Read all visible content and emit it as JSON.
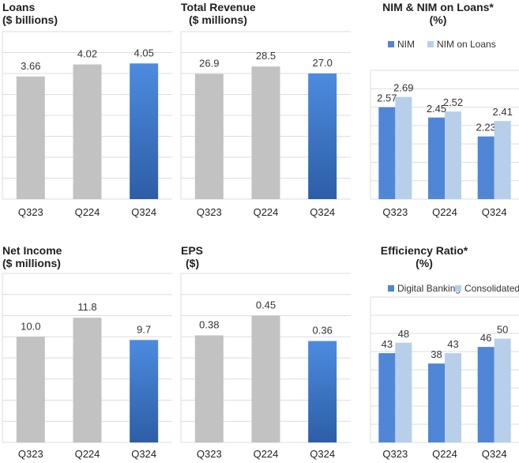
{
  "colors": {
    "gray": "#c2c2c2",
    "blue_top": "#4d8be0",
    "blue_bottom": "#2c5ea6",
    "series_primary": "#4f86d6",
    "series_secondary": "#b8cfea",
    "grid": "#d9dde4"
  },
  "chart_data": [
    {
      "id": "loans",
      "type": "bar",
      "title_line1": "Loans",
      "title_line2": "($ billions)",
      "categories": [
        "Q323",
        "Q224",
        "Q324"
      ],
      "values": [
        3.66,
        4.02,
        4.05
      ],
      "value_labels": [
        "3.66",
        "4.02",
        "4.05"
      ],
      "highlight": [
        false,
        false,
        true
      ],
      "ylim": [
        0,
        5
      ]
    },
    {
      "id": "revenue",
      "type": "bar",
      "title_line1": "Total Revenue",
      "title_line2": "($ millions)",
      "categories": [
        "Q323",
        "Q224",
        "Q324"
      ],
      "values": [
        26.9,
        28.5,
        27.0
      ],
      "value_labels": [
        "26.9",
        "28.5",
        "27.0"
      ],
      "highlight": [
        false,
        false,
        true
      ],
      "ylim": [
        0,
        36
      ]
    },
    {
      "id": "nim",
      "type": "bar",
      "title_line1": "NIM & NIM on Loans*",
      "title_line2": "(%)",
      "categories": [
        "Q323",
        "Q224",
        "Q324"
      ],
      "series": [
        {
          "name": "NIM",
          "values": [
            2.57,
            2.45,
            2.23
          ],
          "value_labels": [
            "2.57",
            "2.45",
            "2.23"
          ]
        },
        {
          "name": "NIM on Loans",
          "values": [
            2.69,
            2.52,
            2.41
          ],
          "value_labels": [
            "2.69",
            "2.52",
            "2.41"
          ]
        }
      ],
      "legend": "top",
      "ylim": [
        1.5,
        3.0
      ]
    },
    {
      "id": "netincome",
      "type": "bar",
      "title_line1": "Net Income",
      "title_line2": "($ millions)",
      "categories": [
        "Q323",
        "Q224",
        "Q324"
      ],
      "values": [
        10.0,
        11.8,
        9.7
      ],
      "value_labels": [
        "10.0",
        "11.8",
        "9.7"
      ],
      "highlight": [
        false,
        false,
        true
      ],
      "ylim": [
        0,
        16
      ]
    },
    {
      "id": "eps",
      "type": "bar",
      "title_line1": "EPS",
      "title_line2": "($)",
      "categories": [
        "Q323",
        "Q224",
        "Q324"
      ],
      "values": [
        0.38,
        0.45,
        0.36
      ],
      "value_labels": [
        "0.38",
        "0.45",
        "0.36"
      ],
      "highlight": [
        false,
        false,
        true
      ],
      "ylim": [
        0,
        0.6
      ]
    },
    {
      "id": "efficiency",
      "type": "bar",
      "title_line1": "Efficiency Ratio*",
      "title_line2": "(%)",
      "categories": [
        "Q323",
        "Q224",
        "Q324"
      ],
      "series": [
        {
          "name": "Digital Banking",
          "values": [
            43,
            38,
            46
          ],
          "value_labels": [
            "43",
            "38",
            "46"
          ]
        },
        {
          "name": "Consolidated",
          "values": [
            48,
            43,
            50
          ],
          "value_labels": [
            "48",
            "43",
            "50"
          ]
        }
      ],
      "legend": "top",
      "ylim": [
        0,
        70
      ]
    }
  ]
}
